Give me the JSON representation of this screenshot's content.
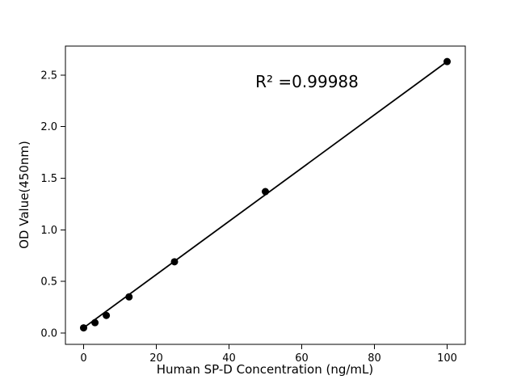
{
  "figure": {
    "background": "#ffffff"
  },
  "chart_data": {
    "type": "scatter",
    "title": "",
    "xlabel": "Human SP-D Concentration (ng/mL)",
    "ylabel": "OD Value(450nm)",
    "annotation": "R² =0.99988",
    "x": [
      0,
      3.125,
      6.25,
      12.5,
      25,
      50,
      100
    ],
    "y": [
      0.05,
      0.1,
      0.17,
      0.35,
      0.69,
      1.37,
      2.63
    ],
    "fit_line": {
      "x1": 0,
      "y1": 0.05,
      "x2": 100,
      "y2": 2.63
    },
    "xticks": [
      0,
      20,
      40,
      60,
      80,
      100
    ],
    "xtick_labels": [
      "0",
      "20",
      "40",
      "60",
      "80",
      "100"
    ],
    "yticks": [
      0.0,
      0.5,
      1.0,
      1.5,
      2.0,
      2.5
    ],
    "ytick_labels": [
      "0.0",
      "0.5",
      "1.0",
      "1.5",
      "2.0",
      "2.5"
    ],
    "xlim": [
      -5,
      105
    ],
    "ylim": [
      -0.11,
      2.78
    ],
    "grid": false,
    "legend": "none",
    "marker_color": "#000000",
    "line_color": "#000000",
    "axis_color": "#000000"
  }
}
